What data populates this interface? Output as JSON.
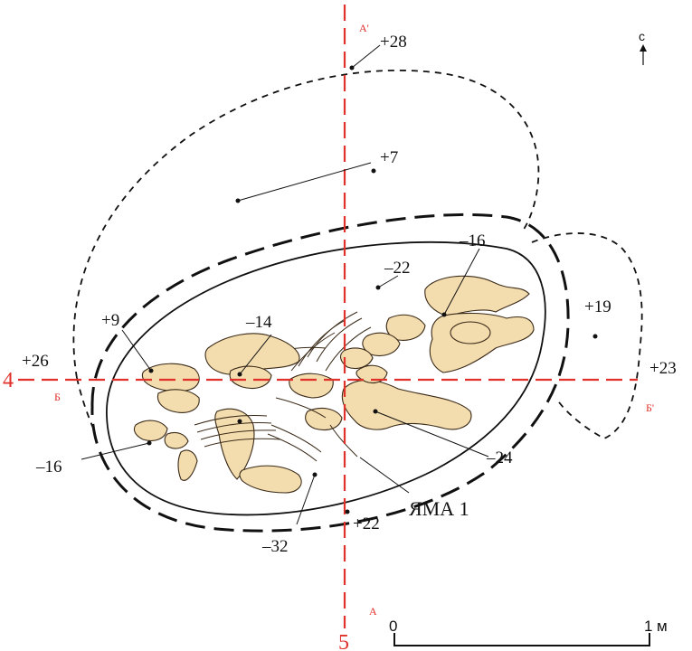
{
  "elevations": {
    "e_p28": "+28",
    "e_p7": "+7",
    "e_m16_top": "–16",
    "e_m22": "–22",
    "e_p19": "+19",
    "e_m14": "–14",
    "e_p9": "+9",
    "e_p26": "+26",
    "e_p23": "+23",
    "e_m16_left": "–16",
    "e_m24": "–24",
    "e_p22": "+22",
    "e_m32": "–32"
  },
  "pit_label": "ЯМА 1",
  "section_lines": {
    "vertical_number": "5",
    "horizontal_number": "4",
    "a_top": "А'",
    "a_bottom": "А",
    "b_left": "Б",
    "b_right": "Б'"
  },
  "north_arrow": {
    "letter": "с"
  },
  "scale_bar": {
    "zero": "0",
    "end": "1",
    "unit": "м",
    "length_m": 1
  },
  "colors": {
    "section_line": "#e0312b",
    "bone_fill": "#f3dcae",
    "outline": "#111111"
  }
}
